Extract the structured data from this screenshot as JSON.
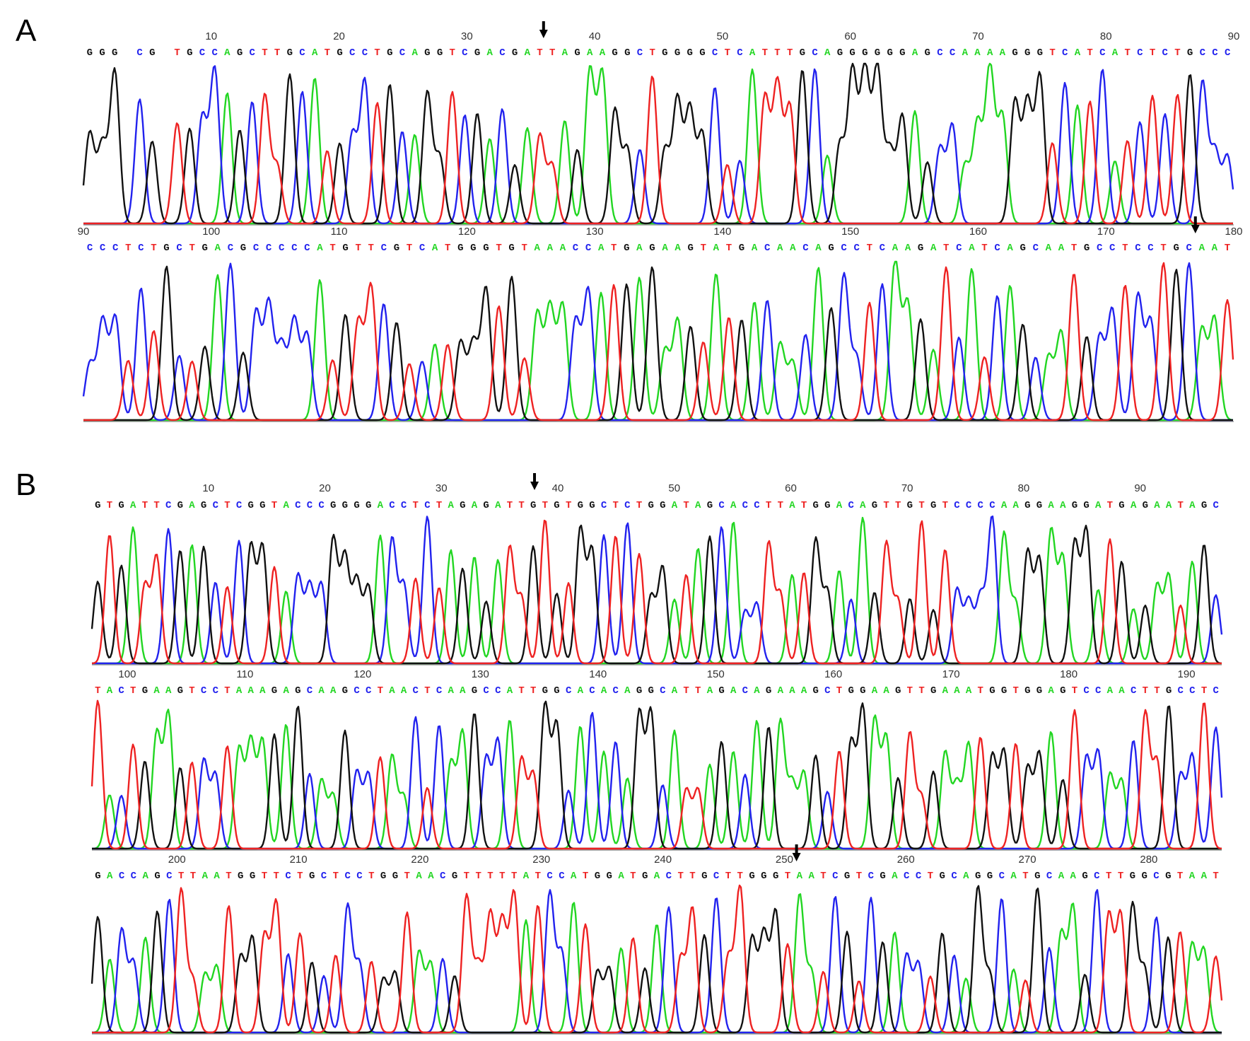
{
  "colors": {
    "A": "#22d622",
    "C": "#2222ee",
    "G": "#111111",
    "T": "#ee2222"
  },
  "chart_data": [
    {
      "type": "line",
      "chart": "sequencing-chromatogram",
      "panel_label": "A",
      "rows": [
        {
          "start": 0,
          "end": 90,
          "ticks": [
            10,
            20,
            30,
            40,
            50,
            60,
            70,
            80,
            90
          ],
          "sequence": "GGG CG TGCCAGCTTGCATGCCTGCAGGTCGACGATTAGAAGGCTGGGGCTCATTTGCAGGGGGGAGCCAAAAGGGTCATCATCTCTGCCC",
          "marker_position": 36
        },
        {
          "start": 90,
          "end": 180,
          "ticks": [
            90,
            100,
            110,
            120,
            130,
            140,
            150,
            160,
            170,
            180
          ],
          "sequence": "CCCTCTGCTGACGCCCCCATGTTCGTCATGGGTGTAAACCATGAGAAGTATGACAACAGCCTCAAGATCATCAGCAATGCCTCCTGCAAT",
          "marker_position": 177
        }
      ]
    },
    {
      "type": "line",
      "chart": "sequencing-chromatogram",
      "panel_label": "B",
      "rows": [
        {
          "start": 0,
          "end": 97,
          "ticks": [
            10,
            20,
            30,
            40,
            50,
            60,
            70,
            80,
            90
          ],
          "sequence": "GTGATTCGAGCTCGGTACCCGGGGACCTCTAGAGATTGTGTGGCTCTGGATAGCACCTTATGGACAGTTGTGTCCCCAAGGAAGGATGAGAATAGC",
          "marker_position": 38
        },
        {
          "start": 97,
          "end": 193,
          "ticks": [
            100,
            110,
            120,
            130,
            140,
            150,
            160,
            170,
            180,
            190
          ],
          "sequence": "TACTGAAGTCCTAAAGAGCAAGCCTAACTCAAGCCATTGGCACACAGGCATTAGACAGAAAGCTGGAAGTTGAAATGGTGGAGTCCAACTTGCCTC",
          "marker_position": null
        },
        {
          "start": 193,
          "end": 286,
          "ticks": [
            200,
            210,
            220,
            230,
            240,
            250,
            260,
            270,
            280
          ],
          "sequence": "GACCAGCTTAATGGTTCTGCTCCTGGTAACGTTTTTATCCATGGATGACTTGCTTGGGTAATCGTCGACCTGCAGGCATGCAAGCTTGGCGTAAT",
          "marker_position": 251
        }
      ]
    }
  ]
}
